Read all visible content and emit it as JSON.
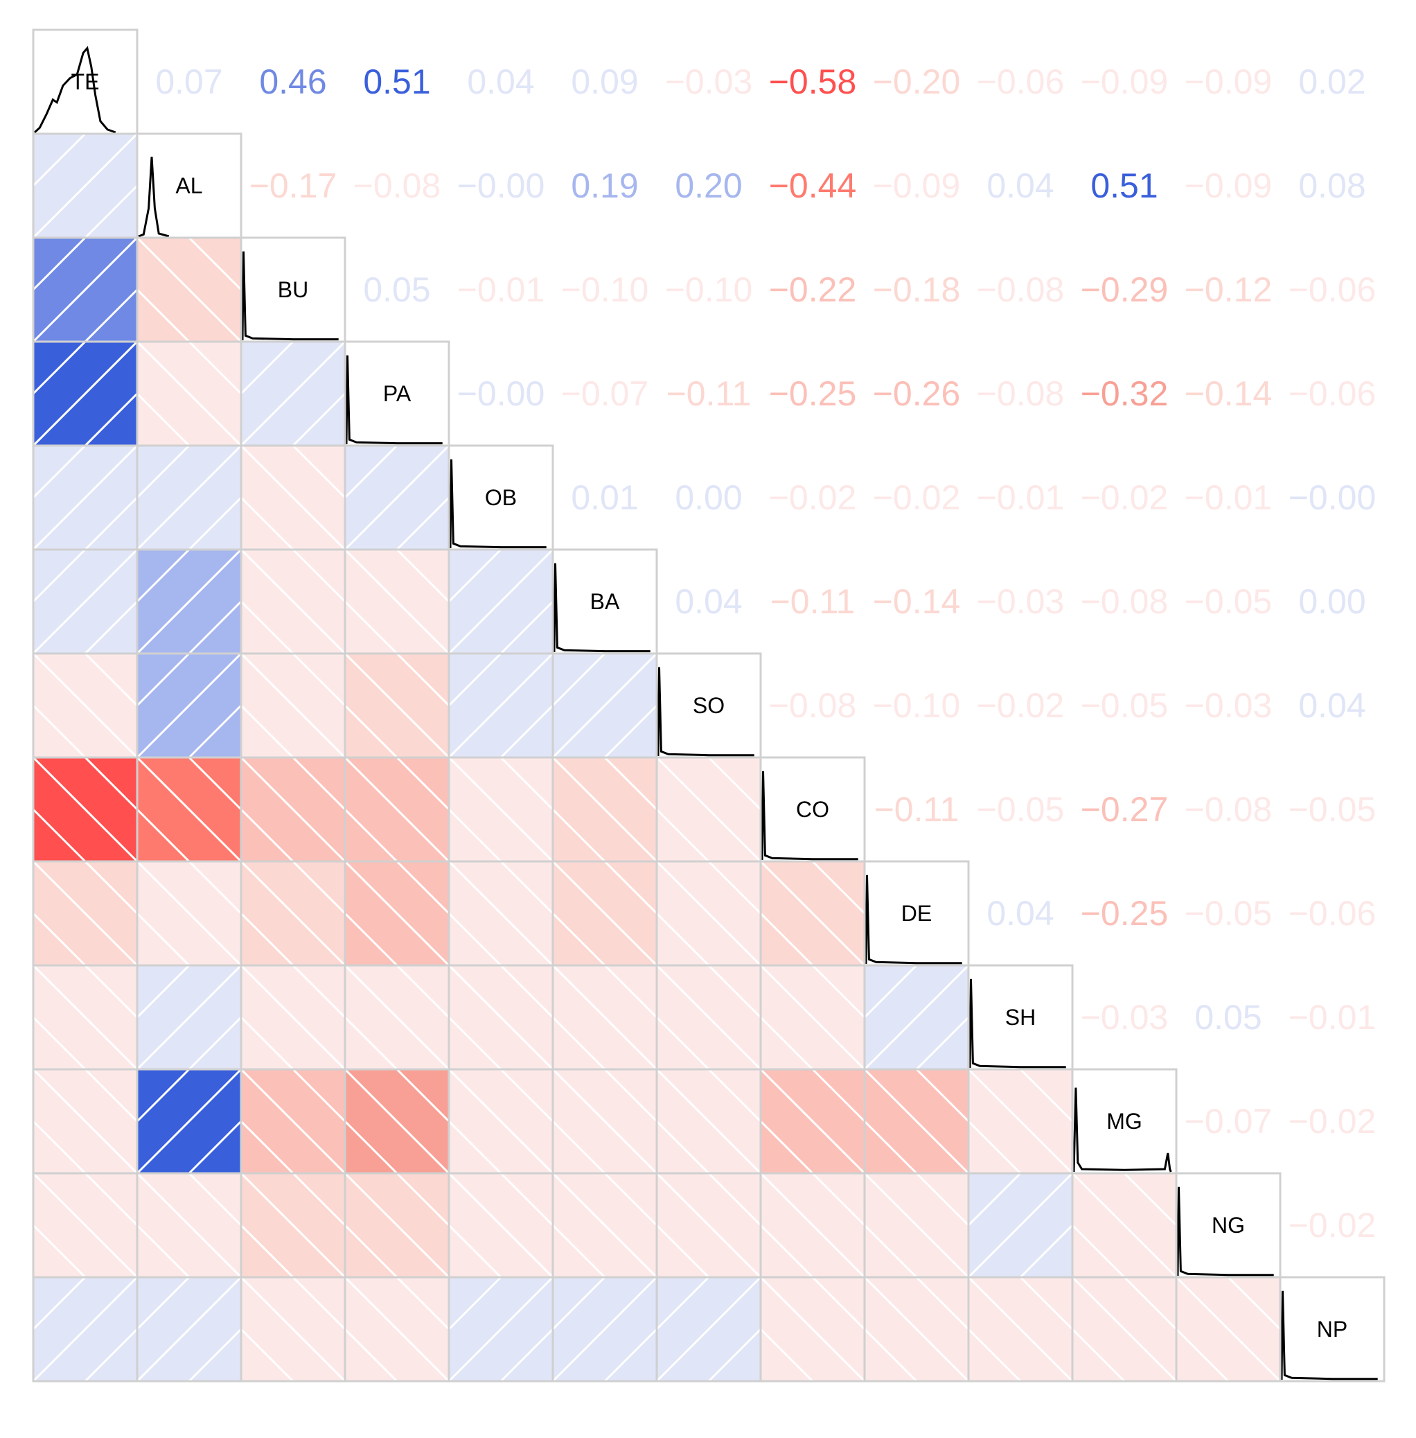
{
  "chart_data": {
    "type": "corrgram",
    "variables": [
      "TE",
      "AL",
      "BU",
      "PA",
      "OB",
      "BA",
      "SO",
      "CO",
      "DE",
      "SH",
      "MG",
      "NG",
      "NP"
    ],
    "values": [
      [
        0.07,
        0.46,
        0.51,
        0.04,
        0.09,
        -0.03,
        -0.58,
        -0.2,
        -0.06,
        -0.09,
        -0.09,
        0.02
      ],
      [
        -0.17,
        -0.08,
        -0.0,
        0.19,
        0.2,
        -0.44,
        -0.09,
        0.04,
        0.51,
        -0.09,
        0.08
      ],
      [
        0.05,
        -0.01,
        -0.1,
        -0.1,
        -0.22,
        -0.18,
        -0.08,
        -0.29,
        -0.12,
        -0.06
      ],
      [
        -0.0,
        -0.07,
        -0.11,
        -0.25,
        -0.26,
        -0.08,
        -0.32,
        -0.14,
        -0.06
      ],
      [
        0.01,
        0.0,
        -0.02,
        -0.02,
        -0.01,
        -0.02,
        -0.01,
        -0.0
      ],
      [
        0.04,
        -0.11,
        -0.14,
        -0.03,
        -0.08,
        -0.05,
        0.0
      ],
      [
        -0.08,
        -0.1,
        -0.02,
        -0.05,
        -0.03,
        0.04
      ],
      [
        -0.11,
        -0.05,
        -0.27,
        -0.08,
        -0.05
      ],
      [
        0.04,
        -0.25,
        -0.05,
        -0.06
      ],
      [
        -0.03,
        0.05,
        -0.01
      ],
      [
        -0.07,
        -0.02
      ],
      [
        -0.02
      ]
    ],
    "value_labels": [
      [
        "0.07",
        "0.46",
        "0.51",
        "0.04",
        "0.09",
        "−0.03",
        "−0.58",
        "−0.20",
        "−0.06",
        "−0.09",
        "−0.09",
        "0.02"
      ],
      [
        "−0.17",
        "−0.08",
        "−0.00",
        "0.19",
        "0.20",
        "−0.44",
        "−0.09",
        "0.04",
        "0.51",
        "−0.09",
        "0.08"
      ],
      [
        "0.05",
        "−0.01",
        "−0.10",
        "−0.10",
        "−0.22",
        "−0.18",
        "−0.08",
        "−0.29",
        "−0.12",
        "−0.06"
      ],
      [
        "−0.00",
        "−0.07",
        "−0.11",
        "−0.25",
        "−0.26",
        "−0.08",
        "−0.32",
        "−0.14",
        "−0.06"
      ],
      [
        "0.01",
        "0.00",
        "−0.02",
        "−0.02",
        "−0.01",
        "−0.02",
        "−0.01",
        "−0.00"
      ],
      [
        "0.04",
        "−0.11",
        "−0.14",
        "−0.03",
        "−0.08",
        "−0.05",
        "0.00"
      ],
      [
        "−0.08",
        "−0.10",
        "−0.02",
        "−0.05",
        "−0.03",
        "0.04"
      ],
      [
        "−0.11",
        "−0.05",
        "−0.27",
        "−0.08",
        "−0.05"
      ],
      [
        "0.04",
        "−0.25",
        "−0.05",
        "−0.06"
      ],
      [
        "−0.03",
        "0.05",
        "−0.01"
      ],
      [
        "−0.07",
        "−0.02"
      ],
      [
        "−0.02"
      ]
    ],
    "palette": [
      "#ff0000",
      "#ff1a1a",
      "#ff2a2a",
      "#ff3b3b",
      "#ff4f4f",
      "#ff7a6e",
      "#f8a095",
      "#fbc0b8",
      "#fcd8d2",
      "#fde8e8",
      "#e0e5f7",
      "#a6b6ee",
      "#a6b6ee",
      "#8ea2ea",
      "#6f89e4",
      "#3a5fdb",
      "#2f50c8",
      "#2643b0",
      "#1c3590",
      "#102070"
    ]
  }
}
